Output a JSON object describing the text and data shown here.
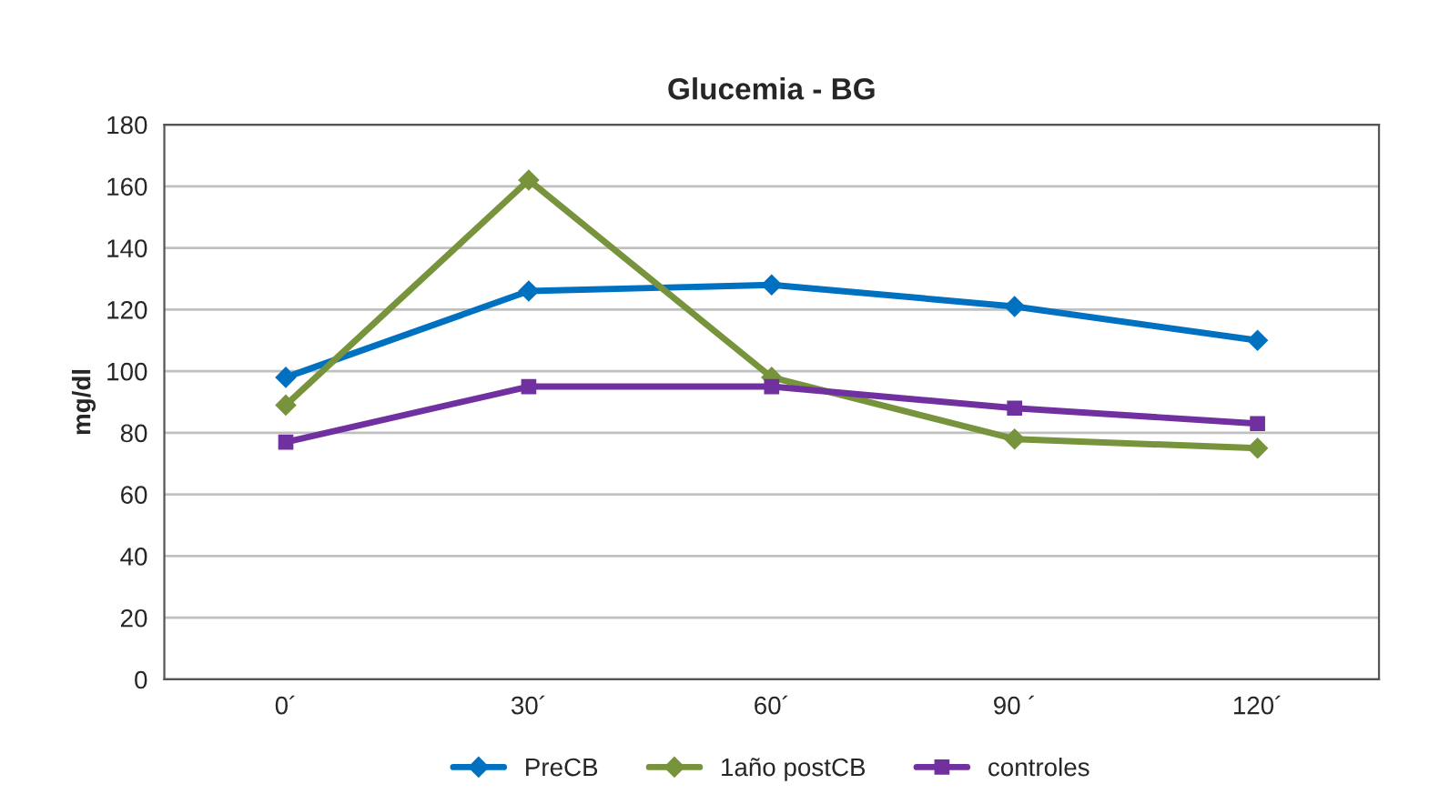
{
  "chart_data": {
    "type": "line",
    "title": "Glucemia - BG",
    "ylabel": "mg/dl",
    "categories": [
      "0´",
      "30´",
      "60´",
      "90 ´",
      "120´"
    ],
    "series": [
      {
        "name": "PreCB",
        "color": "#0070c0",
        "marker": "diamond",
        "values": [
          98,
          126,
          128,
          121,
          110
        ]
      },
      {
        "name": "1año postCB",
        "color": "#77933c",
        "marker": "diamond",
        "values": [
          89,
          162,
          98,
          78,
          75
        ]
      },
      {
        "name": "controles",
        "color": "#7030a0",
        "marker": "square",
        "values": [
          77,
          95,
          95,
          88,
          83
        ]
      }
    ],
    "ylim": [
      0,
      180
    ],
    "yticks": [
      0,
      20,
      40,
      60,
      80,
      100,
      120,
      140,
      160,
      180
    ],
    "grid": "y",
    "legend": "bottom"
  }
}
